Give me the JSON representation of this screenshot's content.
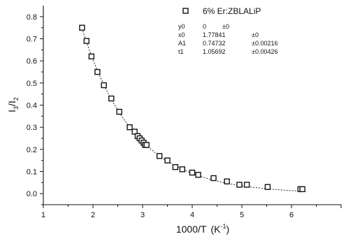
{
  "chart_data": {
    "type": "scatter",
    "title": "",
    "xlabel": "1000/T",
    "xlabel_unit_base": "(K",
    "xlabel_unit_exp": "-1",
    "xlabel_unit_close": ")",
    "ylabel_base": "I",
    "ylabel_sub1": "3",
    "ylabel_sep": "/I",
    "ylabel_sub2": "2",
    "xlim": [
      1,
      7
    ],
    "ylim": [
      -0.05,
      0.85
    ],
    "xticks": [
      1,
      2,
      3,
      4,
      5,
      6,
      7
    ],
    "xtick_labels": [
      "1",
      "2",
      "3",
      "4",
      "5",
      "6",
      ""
    ],
    "yticks": [
      0.0,
      0.1,
      0.2,
      0.3,
      0.4,
      0.5,
      0.6,
      0.7,
      0.8
    ],
    "ytick_labels": [
      "0.0",
      "0.1",
      "0.2",
      "0.3",
      "0.4",
      "0.5",
      "0.6",
      "0.7",
      "0.8"
    ],
    "grid": false,
    "legend_position": "top-right",
    "series": [
      {
        "name": "6% Er:ZBLALiP",
        "marker": "open-square",
        "color": "#111111",
        "x": [
          1.78,
          1.87,
          1.97,
          2.09,
          2.22,
          2.37,
          2.53,
          2.74,
          2.84,
          2.9,
          2.94,
          2.98,
          3.02,
          3.05,
          3.08,
          3.34,
          3.5,
          3.66,
          3.8,
          4.0,
          4.12,
          4.43,
          4.7,
          4.95,
          5.1,
          5.52,
          6.18,
          6.22
        ],
        "y": [
          0.75,
          0.69,
          0.62,
          0.55,
          0.49,
          0.43,
          0.37,
          0.3,
          0.28,
          0.26,
          0.25,
          0.24,
          0.23,
          0.22,
          0.22,
          0.17,
          0.15,
          0.12,
          0.11,
          0.095,
          0.085,
          0.07,
          0.055,
          0.04,
          0.04,
          0.03,
          0.02,
          0.02
        ]
      }
    ],
    "fit": {
      "line_style": "dotted",
      "y0": 0,
      "x0": 1.77841,
      "A1": 0.74732,
      "t1": 1.05692,
      "params": [
        {
          "name": "y0",
          "value": "0",
          "error": "±0"
        },
        {
          "name": "x0",
          "value": "1.77841",
          "error": "±0"
        },
        {
          "name": "A1",
          "value": "0.74732",
          "error": "±0.00216"
        },
        {
          "name": "t1",
          "value": "1.05692",
          "error": "±0.00426"
        }
      ]
    }
  }
}
